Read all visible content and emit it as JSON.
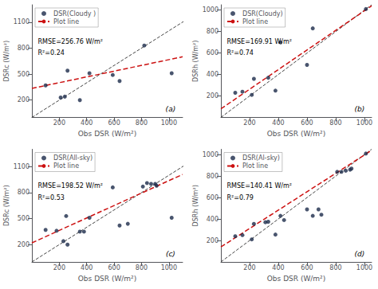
{
  "chart_data": [
    {
      "type": "scatter",
      "xlabel": "Obs DSR (W/m²)",
      "ylabel": "DSRc (W/m²)",
      "annotations": [
        "RMSE=256.76 W/m²",
        "R²=0.24",
        "(a)"
      ],
      "xlim": [
        0,
        1100
      ],
      "ylim": [
        0,
        1300
      ],
      "xticks": [
        200,
        400,
        600,
        800,
        1000
      ],
      "yticks": [
        200,
        500,
        800,
        1100
      ],
      "grid": false,
      "legend": "upper left",
      "series": [
        {
          "name": "DSR(Cloudy )",
          "type": "scatter",
          "color": "#1b2a4a",
          "marker": "circle",
          "x": [
            100,
            210,
            240,
            260,
            350,
            420,
            590,
            640,
            820,
            1020
          ],
          "values": [
            370,
            230,
            240,
            540,
            200,
            510,
            490,
            420,
            830,
            510
          ]
        },
        {
          "name": "Plot line",
          "type": "line",
          "color": "#cc1111",
          "line_style": "dashed",
          "x": [
            0,
            1100
          ],
          "values": [
            335,
            700
          ]
        },
        {
          "type": "line",
          "color": "#444444",
          "line_style": "dashed",
          "x": [
            0,
            1300
          ],
          "values": [
            0,
            1300
          ]
        }
      ]
    },
    {
      "type": "scatter",
      "xlabel": "Obs DSR (W/m²)",
      "ylabel": "DSRh (W/m²)",
      "annotations": [
        "RMSE=169.91 W/m²",
        "R²=0.74",
        "(b)"
      ],
      "xlim": [
        0,
        1050
      ],
      "ylim": [
        0,
        1050
      ],
      "xticks": [
        200,
        400,
        600,
        800,
        1000
      ],
      "yticks": [
        200,
        400,
        600,
        800,
        1000
      ],
      "grid": false,
      "legend": "upper left",
      "series": [
        {
          "name": "DSR(Cloudy)",
          "type": "scatter",
          "color": "#1b2a4a",
          "marker": "circle",
          "x": [
            100,
            150,
            215,
            230,
            330,
            380,
            415,
            600,
            640,
            1010
          ],
          "values": [
            230,
            240,
            210,
            360,
            370,
            250,
            700,
            490,
            830,
            1010
          ]
        },
        {
          "name": "Plot line",
          "type": "line",
          "color": "#cc1111",
          "line_style": "dashed",
          "x": [
            0,
            1050
          ],
          "values": [
            80,
            1040
          ]
        },
        {
          "type": "line",
          "color": "#444444",
          "line_style": "dashed",
          "x": [
            0,
            1050
          ],
          "values": [
            0,
            1050
          ]
        }
      ]
    },
    {
      "type": "scatter",
      "xlabel": "Obs DSR (W/m²)",
      "ylabel": "DSRc (W/m²)",
      "annotations": [
        "RMSE=198.52 W/m²",
        "R²=0.53",
        "(c)"
      ],
      "xlim": [
        0,
        1100
      ],
      "ylim": [
        0,
        1300
      ],
      "xticks": [
        200,
        400,
        600,
        800,
        1000
      ],
      "yticks": [
        200,
        500,
        800,
        1100
      ],
      "grid": false,
      "legend": "upper left",
      "series": [
        {
          "name": "DSR(All-sky)",
          "type": "scatter",
          "color": "#1b2a4a",
          "marker": "circle",
          "x": [
            100,
            180,
            230,
            250,
            260,
            350,
            380,
            420,
            590,
            640,
            700,
            810,
            840,
            870,
            900,
            910,
            1020
          ],
          "values": [
            370,
            360,
            240,
            530,
            200,
            350,
            350,
            510,
            860,
            420,
            440,
            870,
            910,
            900,
            900,
            880,
            510
          ]
        },
        {
          "name": "Plot line",
          "type": "line",
          "color": "#cc1111",
          "line_style": "dashed",
          "x": [
            0,
            1100
          ],
          "values": [
            220,
            1010
          ]
        },
        {
          "type": "line",
          "color": "#444444",
          "line_style": "dashed",
          "x": [
            0,
            1300
          ],
          "values": [
            0,
            1300
          ]
        }
      ]
    },
    {
      "type": "scatter",
      "xlabel": "Obs DSR (W/m²)",
      "ylabel": "DSRh (W/m²)",
      "annotations": [
        "RMSE=140.41 W/m²",
        "R²=0.79",
        "(d)"
      ],
      "xlim": [
        0,
        1050
      ],
      "ylim": [
        0,
        1050
      ],
      "xticks": [
        200,
        400,
        600,
        800,
        1000
      ],
      "yticks": [
        200,
        400,
        600,
        800,
        1000
      ],
      "grid": false,
      "legend": "upper left",
      "series": [
        {
          "name": "DSR(Al-sky)",
          "type": "scatter",
          "color": "#1b2a4a",
          "marker": "circle",
          "x": [
            100,
            150,
            215,
            230,
            310,
            330,
            380,
            415,
            440,
            600,
            640,
            680,
            700,
            810,
            840,
            870,
            900,
            910,
            1010
          ],
          "values": [
            240,
            250,
            210,
            355,
            370,
            375,
            255,
            430,
            390,
            490,
            430,
            490,
            440,
            840,
            840,
            850,
            860,
            870,
            1010
          ]
        },
        {
          "name": "Plot line",
          "type": "line",
          "color": "#cc1111",
          "line_style": "dashed",
          "x": [
            0,
            1050
          ],
          "values": [
            140,
            1040
          ]
        },
        {
          "type": "line",
          "color": "#444444",
          "line_style": "dashed",
          "x": [
            0,
            1050
          ],
          "values": [
            0,
            1050
          ]
        }
      ]
    }
  ]
}
